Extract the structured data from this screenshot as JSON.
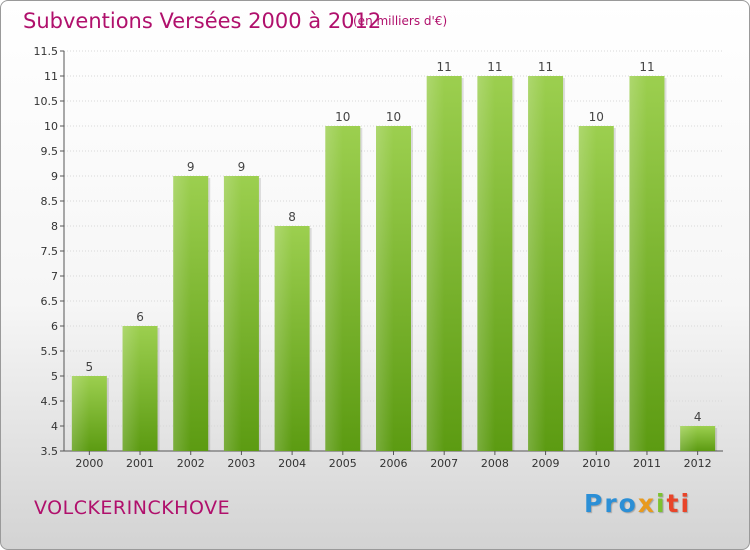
{
  "header": {
    "title": "Subventions Versées 2000 à 2012",
    "subtitle": "(en milliers d'€)"
  },
  "footer": {
    "place": "VOLCKERINCKHOVE",
    "logo": {
      "part1": "Pro",
      "part2": "x",
      "part3": "i",
      "part4": "ti"
    }
  },
  "colors": {
    "title": "#b0106c",
    "bar_top": "#9ccf4f",
    "bar_bottom": "#5c9b12"
  },
  "chart_data": {
    "type": "bar",
    "title": "Subventions Versées 2000 à 2012",
    "subtitle": "(en milliers d'€)",
    "categories": [
      "2000",
      "2001",
      "2002",
      "2003",
      "2004",
      "2005",
      "2006",
      "2007",
      "2008",
      "2009",
      "2010",
      "2011",
      "2012"
    ],
    "values": [
      5,
      6,
      9,
      9,
      8,
      10,
      10,
      11,
      11,
      11,
      10,
      11,
      4
    ],
    "data_labels": [
      "5",
      "6",
      "9",
      "9",
      "8",
      "10",
      "10",
      "11",
      "11",
      "11",
      "10",
      "11",
      "4"
    ],
    "ylim": [
      3.5,
      11.5
    ],
    "yticks": [
      3.5,
      4,
      4.5,
      5,
      5.5,
      6,
      6.5,
      7,
      7.5,
      8,
      8.5,
      9,
      9.5,
      10,
      10.5,
      11,
      11.5
    ],
    "ytick_labels": [
      "3.5",
      "4",
      "4.5",
      "5",
      "5.5",
      "6",
      "6.5",
      "7",
      "7.5",
      "8",
      "8.5",
      "9",
      "9.5",
      "10",
      "10.5",
      "11",
      "11.5"
    ],
    "grid": true,
    "legend": "none"
  }
}
